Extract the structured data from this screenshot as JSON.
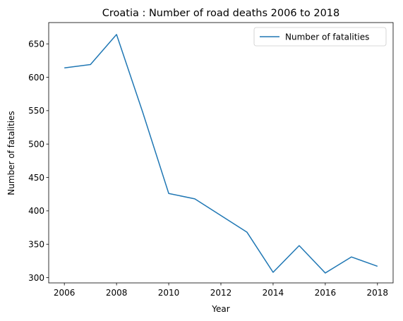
{
  "chart_data": {
    "type": "line",
    "title": "Croatia : Number of road deaths 2006 to 2018",
    "xlabel": "Year",
    "ylabel": "Number of fatalities",
    "x": [
      2006,
      2007,
      2008,
      2009,
      2010,
      2011,
      2012,
      2013,
      2014,
      2015,
      2016,
      2017,
      2018
    ],
    "series": [
      {
        "name": "Number of fatalities",
        "color": "#1f77b4",
        "values": [
          614,
          619,
          664,
          548,
          426,
          418,
          393,
          368,
          308,
          348,
          307,
          331,
          317
        ]
      }
    ],
    "xlim": [
      2005.4,
      2018.6
    ],
    "ylim": [
      292.15,
      681.85
    ],
    "xticks": [
      "2006",
      "2008",
      "2010",
      "2012",
      "2014",
      "2016",
      "2018"
    ],
    "yticks": [
      "300",
      "350",
      "400",
      "450",
      "500",
      "550",
      "600",
      "650"
    ],
    "grid": false,
    "legend": "top-right"
  }
}
